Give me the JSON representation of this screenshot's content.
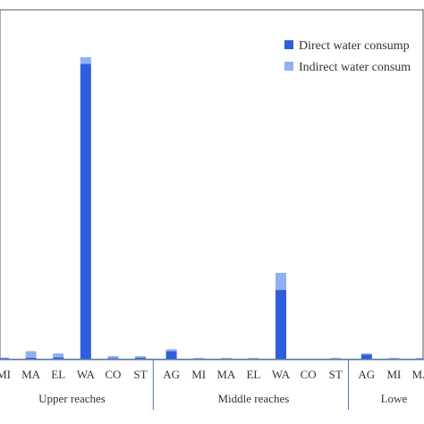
{
  "chart_data": {
    "type": "bar",
    "stacked": true,
    "title": "",
    "xlabel": "",
    "ylabel": "",
    "ylim": [
      0,
      100
    ],
    "grid": false,
    "legend_position": "top-right",
    "groups": [
      {
        "label": "Upper reaches",
        "categories": [
          "MI",
          "MA",
          "EL",
          "WA",
          "CO",
          "ST"
        ],
        "series": [
          {
            "name": "Direct water consumption",
            "values": [
              0.2,
              0.3,
              0.4,
              90.0,
              0.2,
              0.3
            ]
          },
          {
            "name": "Indirect water consumption",
            "values": [
              0.1,
              2.0,
              1.2,
              2.0,
              0.6,
              0.5
            ]
          }
        ]
      },
      {
        "label": "Middle reaches",
        "categories": [
          "AG",
          "MI",
          "MA",
          "EL",
          "WA",
          "CO",
          "ST"
        ],
        "series": [
          {
            "name": "Direct water consumption",
            "values": [
              2.3,
              0.1,
              0.1,
              0.1,
              21.0,
              0.0,
              0.1
            ]
          },
          {
            "name": "Indirect water consumption",
            "values": [
              0.6,
              0.1,
              0.1,
              0.1,
              5.2,
              0.0,
              0.1
            ]
          }
        ]
      },
      {
        "label": "Lowe",
        "categories": [
          "AG",
          "MI",
          "MA"
        ],
        "series": [
          {
            "name": "Direct water consumption",
            "values": [
              1.3,
              0.1,
              0.1
            ]
          },
          {
            "name": "Indirect water consumption",
            "values": [
              0.3,
              0.1,
              0.1
            ]
          }
        ]
      }
    ],
    "legend": [
      {
        "label": "Direct water consump",
        "color": "#2e5ee0"
      },
      {
        "label": "Indirect water consum",
        "color": "#8fb0f5"
      }
    ],
    "colors": {
      "direct": "#2e5ee0",
      "indirect": "#8fb0f5",
      "axis": "#4a78c2",
      "frame": "#555555"
    }
  }
}
